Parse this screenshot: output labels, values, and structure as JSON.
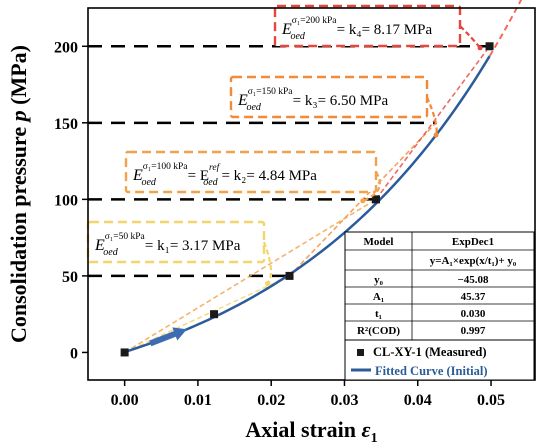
{
  "chart_data": {
    "type": "scatter",
    "xlabel": "Axial strain",
    "xlabel_symbol": "ε",
    "xlabel_sub": "1",
    "ylabel": "Consolidation pressure",
    "ylabel_symbol": "p",
    "ylabel_unit": "(MPa)",
    "xlim": [
      -0.005,
      0.056
    ],
    "ylim": [
      -18,
      225
    ],
    "xticks": [
      "0.00",
      "0.01",
      "0.02",
      "0.03",
      "0.04",
      "0.05"
    ],
    "yticks": [
      "0",
      "50",
      "100",
      "150",
      "200"
    ],
    "xtick_values": [
      0,
      0.01,
      0.02,
      0.03,
      0.04,
      0.05
    ],
    "ytick_values": [
      0,
      50,
      100,
      150,
      200
    ],
    "reference_lines": [
      50,
      100,
      150,
      200
    ],
    "series": [
      {
        "name": "CL-XY-1 (Measured)",
        "kind": "points",
        "color": "#1a1a1a",
        "x": [
          0.0,
          0.0122,
          0.0225,
          0.0343,
          0.0498
        ],
        "y": [
          0,
          25,
          50,
          100,
          200
        ]
      },
      {
        "name": "Fitted Curve (Initial)",
        "kind": "curve",
        "color": "#2b5c9a",
        "model": "y = -45.08 + 45.37*exp(x/0.030)",
        "x_range": [
          0.0,
          0.0498
        ]
      }
    ],
    "extrapolation": {
      "color": "#f26b5b",
      "x_range": [
        0.0498,
        0.0545
      ]
    },
    "fit_table": {
      "title_left": "Model",
      "title_right": "ExpDec1",
      "equation": "y=A₁×exp(x/t₁)+ y₀",
      "rows": [
        {
          "label": "y₀",
          "value": "−45.08"
        },
        {
          "label": "A₁",
          "value": "45.37"
        },
        {
          "label": "t₁",
          "value": "0.030"
        },
        {
          "label": "R²(COD)",
          "value": "0.997"
        }
      ]
    },
    "annotations": [
      {
        "sigma": "σ₁=50 kPa",
        "text": "= k₁= 3.17 MPa",
        "color": "#f2d56b"
      },
      {
        "sigma": "σ₁=100 kPa",
        "text_mid": "= E",
        "sup_mid": "ref",
        "sub_mid": "oed",
        "text": "= k₂= 4.84 MPa",
        "color": "#f2a24a"
      },
      {
        "sigma": "σ₁=150 kPa",
        "text": "= k₃= 6.50 MPa",
        "color": "#f28a38"
      },
      {
        "sigma": "σ₁=200 kPa",
        "text": "= k₄= 8.17 MPa",
        "color": "#e8453c"
      }
    ],
    "legend_position": "bottom-right",
    "colors": {
      "axis": "#000000",
      "dash": "#000000",
      "fit": "#2b5c9a",
      "arrow": "#3d6db0"
    }
  }
}
